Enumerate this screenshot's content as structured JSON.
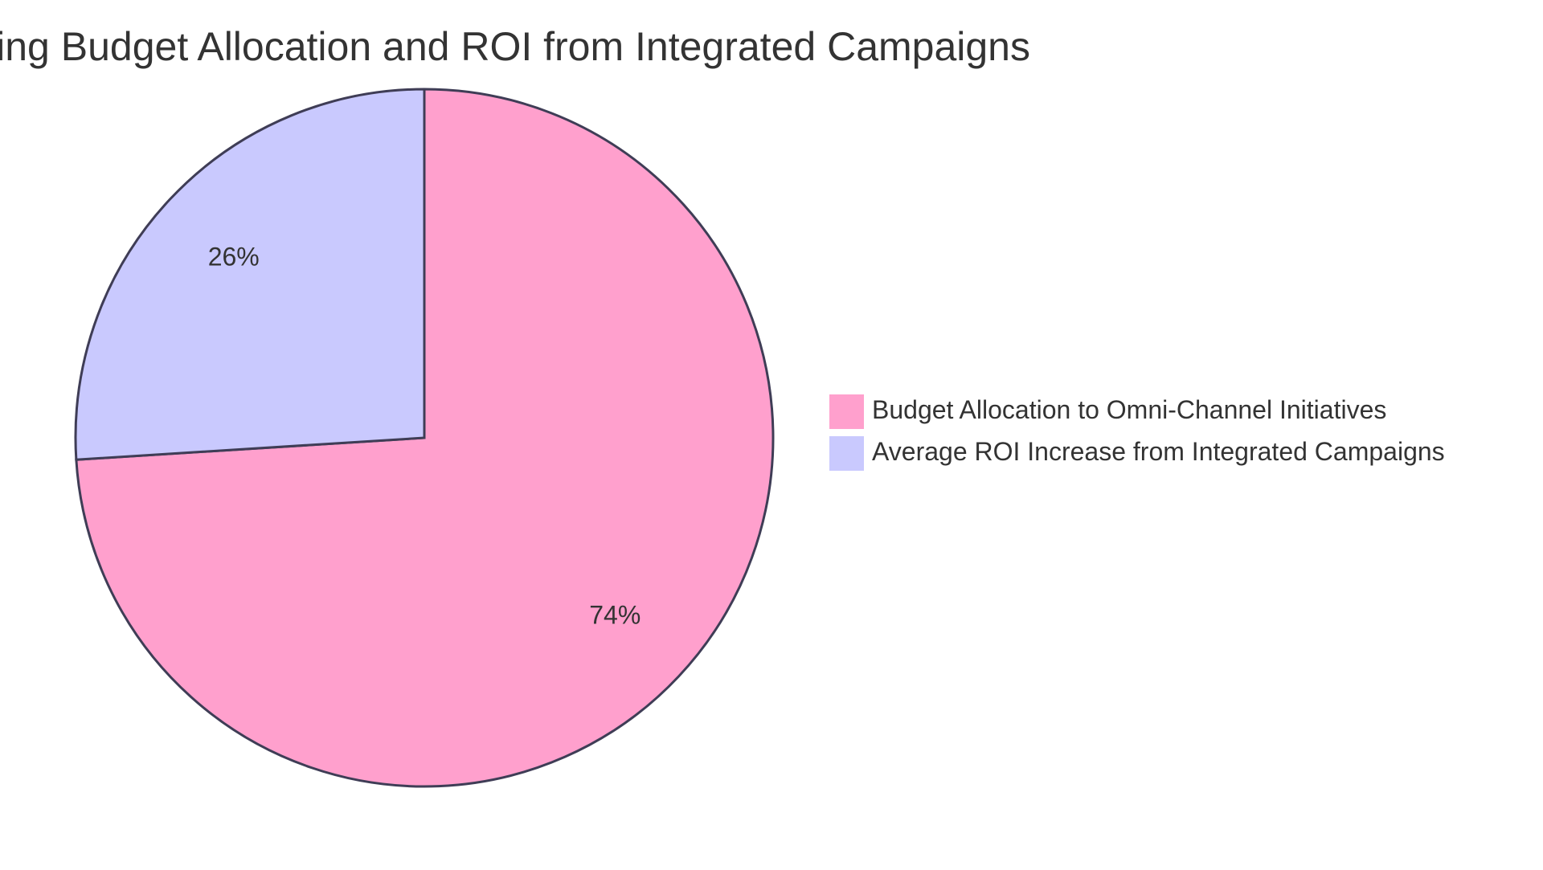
{
  "chart_data": {
    "type": "pie",
    "title": "Distribution of Marketing Budget Allocation and ROI from Integrated Campaigns",
    "series": [
      {
        "name": "Budget Allocation to Omni-Channel Initiatives",
        "value": 74,
        "label": "74%",
        "color": "#ffa0cd"
      },
      {
        "name": "Average ROI Increase from Integrated Campaigns",
        "value": 26,
        "label": "26%",
        "color": "#c9c9fe"
      }
    ],
    "stroke_color": "#3f3d56",
    "legend_position": "right"
  }
}
